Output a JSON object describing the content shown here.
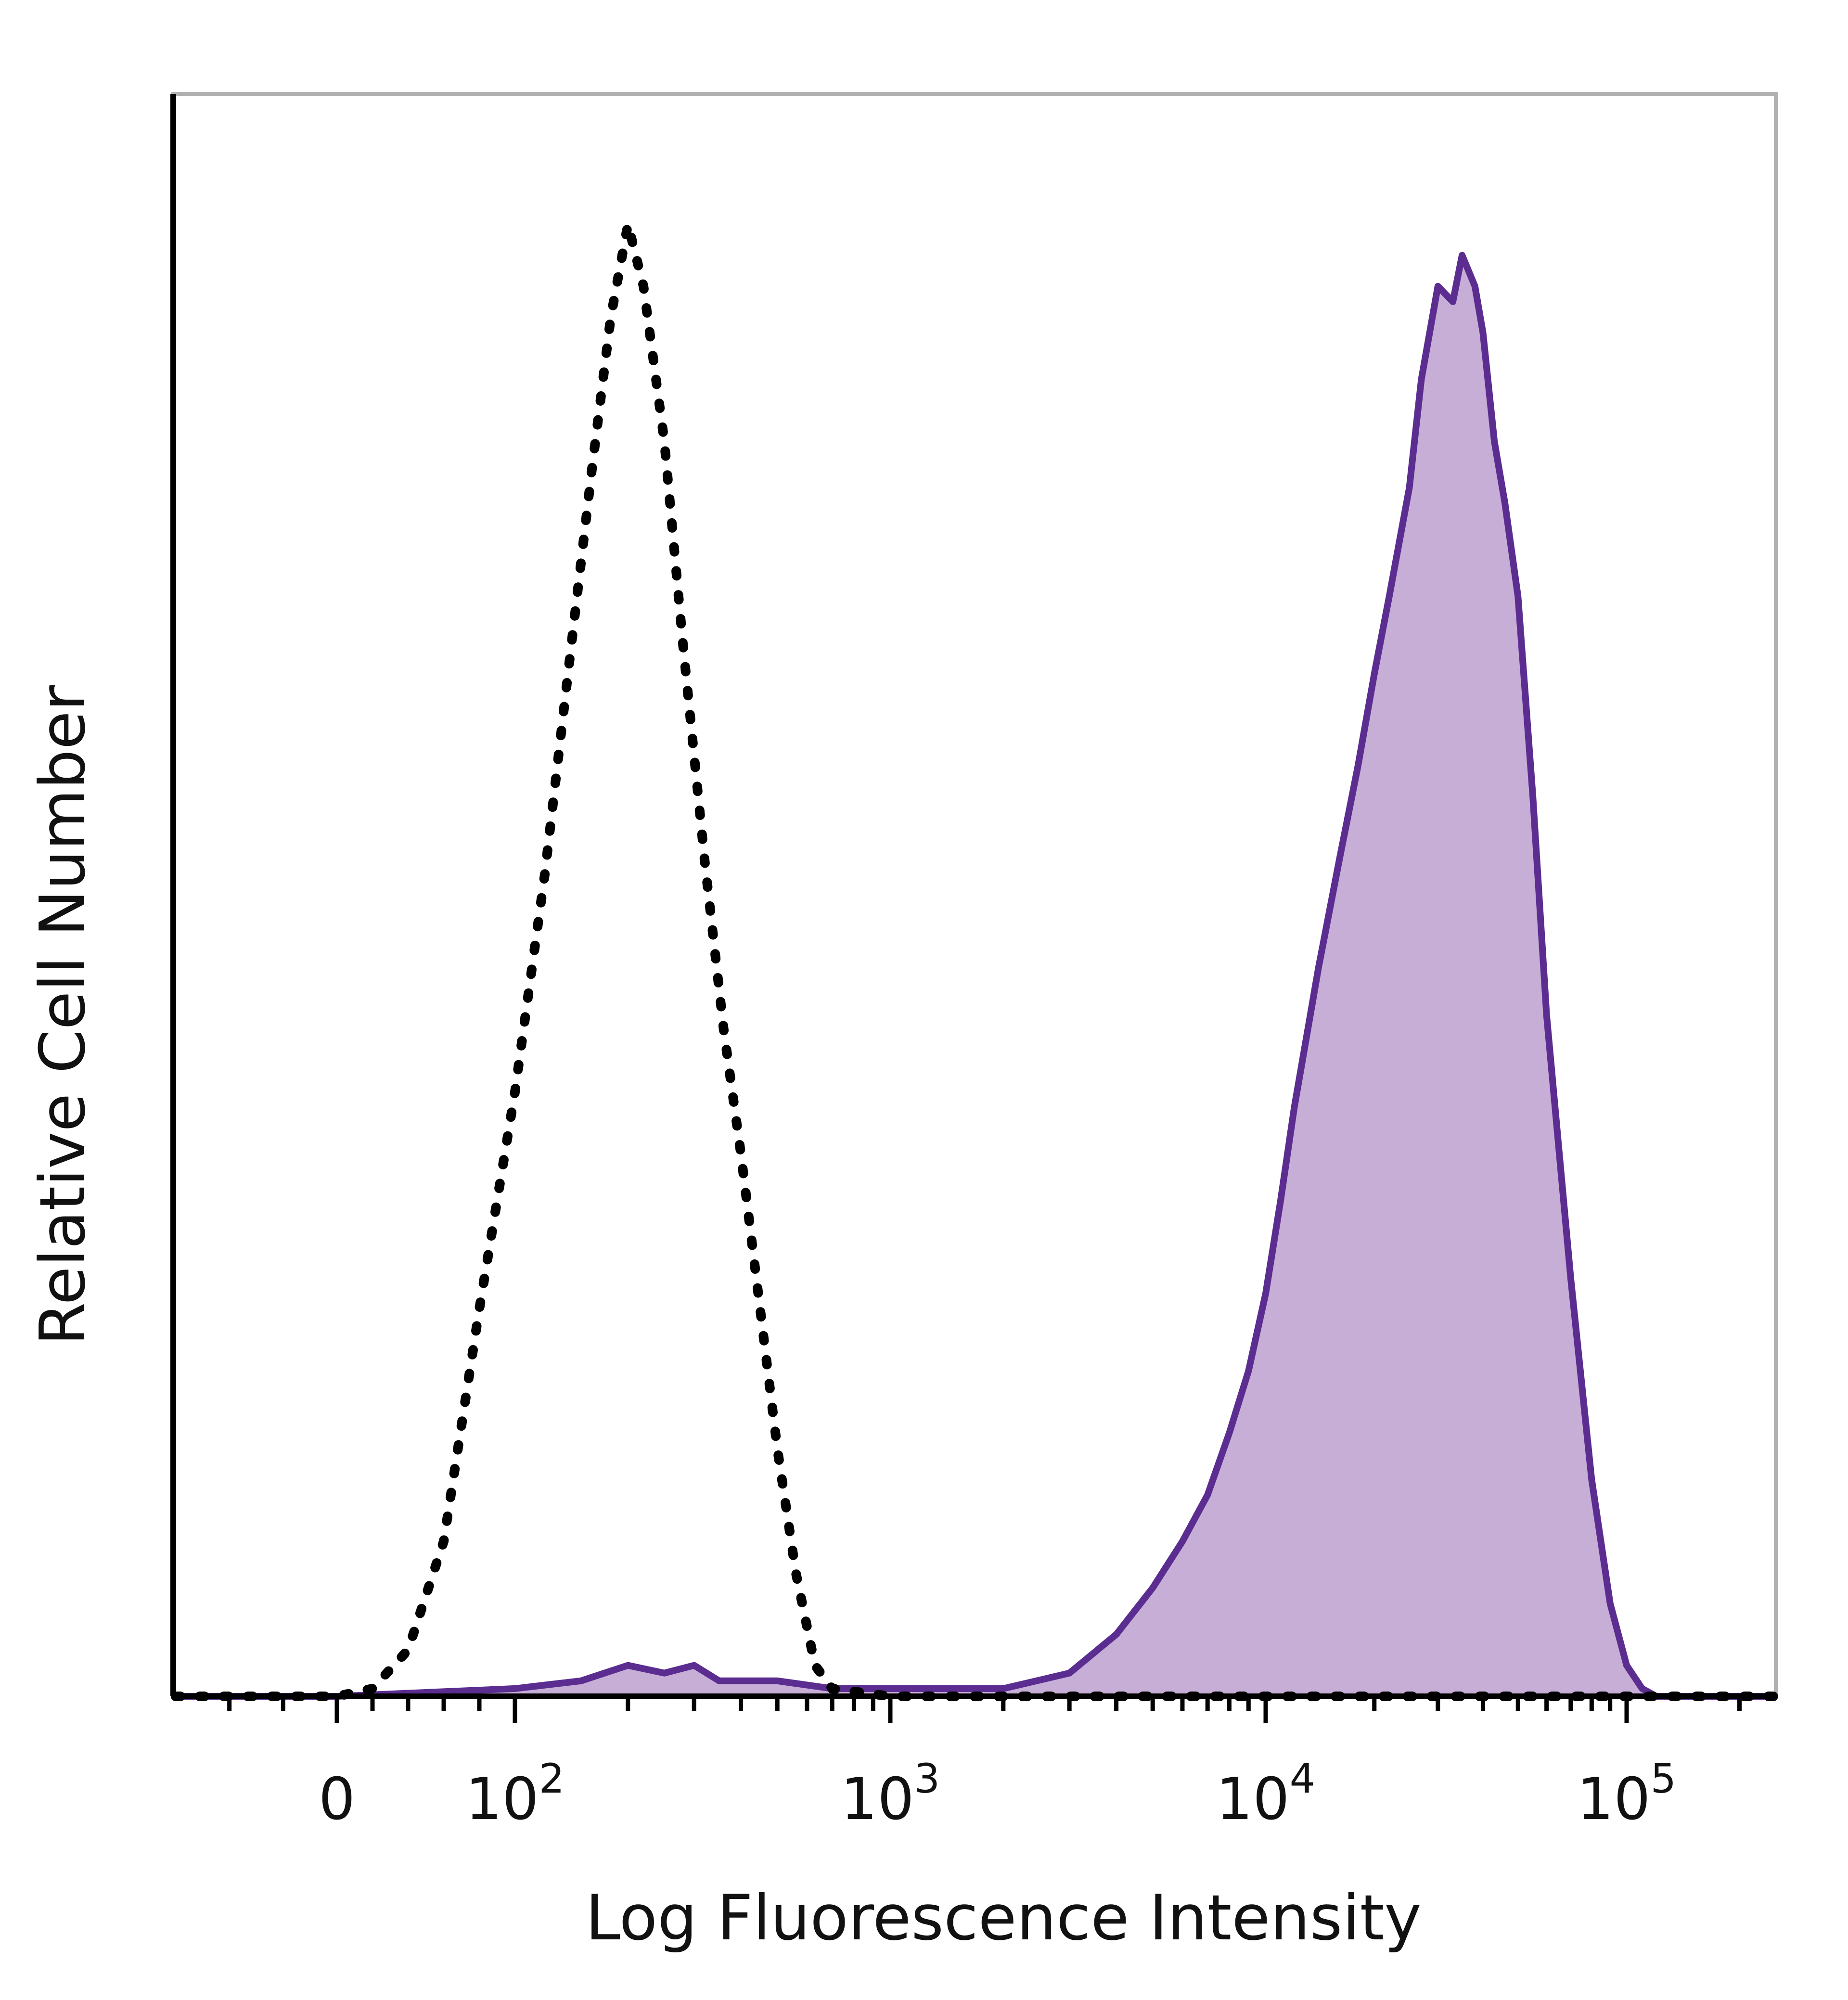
{
  "chart_data": {
    "type": "area",
    "title": "",
    "xlabel": "Log Fluorescence Intensity",
    "ylabel": "Relative Cell Number",
    "x_scale": "biexponential",
    "xlim": [
      -60,
      250000
    ],
    "ylim": [
      0,
      100
    ],
    "x_ticks": [
      {
        "value": 0,
        "base": "0",
        "exp": ""
      },
      {
        "value": 100,
        "base": "10",
        "exp": "2"
      },
      {
        "value": 1000,
        "base": "10",
        "exp": "3"
      },
      {
        "value": 10000,
        "base": "10",
        "exp": "4"
      },
      {
        "value": 100000,
        "base": "10",
        "exp": "5"
      }
    ],
    "grid": false,
    "legend": "none",
    "colors": {
      "stained_line": "#5b2d91",
      "stained_fill": "#c7aed6",
      "control_line": "#000000",
      "axis": "#000000",
      "frame": "#b0b0b0"
    },
    "series": [
      {
        "style": "dotted-line",
        "x": [
          -60,
          -20,
          0,
          20,
          40,
          60,
          80,
          100,
          120,
          140,
          160,
          180,
          200,
          220,
          250,
          280,
          320,
          360,
          400,
          450,
          500,
          560,
          630,
          700,
          1000,
          10000,
          100000,
          250000
        ],
        "y": [
          0,
          0,
          0,
          0.5,
          3,
          10,
          25,
          39,
          53,
          67,
          79,
          89,
          95,
          91,
          81,
          68,
          54,
          43,
          35,
          25,
          16,
          8,
          2,
          0.5,
          0,
          0,
          0,
          0
        ]
      },
      {
        "style": "filled-line",
        "x": [
          -60,
          0,
          100,
          150,
          200,
          250,
          300,
          350,
          500,
          700,
          1000,
          2000,
          3000,
          4000,
          5000,
          6000,
          7000,
          8000,
          9000,
          10000,
          11000,
          12000,
          14000,
          16000,
          18000,
          20000,
          22000,
          25000,
          27000,
          30000,
          33000,
          35000,
          38000,
          40000,
          43000,
          46000,
          50000,
          55000,
          60000,
          70000,
          80000,
          90000,
          100000,
          110000,
          120000,
          250000
        ],
        "y": [
          0,
          0,
          0.5,
          1,
          2,
          1.5,
          2,
          1,
          1,
          0.5,
          0.5,
          0.5,
          1.5,
          4,
          7,
          10,
          13,
          17,
          21,
          26,
          32,
          38,
          47,
          54,
          60,
          66,
          71,
          78,
          85,
          91,
          90,
          93,
          91,
          88,
          81,
          77,
          71,
          58,
          44,
          27,
          14,
          6,
          2,
          0.5,
          0,
          0
        ]
      }
    ]
  }
}
